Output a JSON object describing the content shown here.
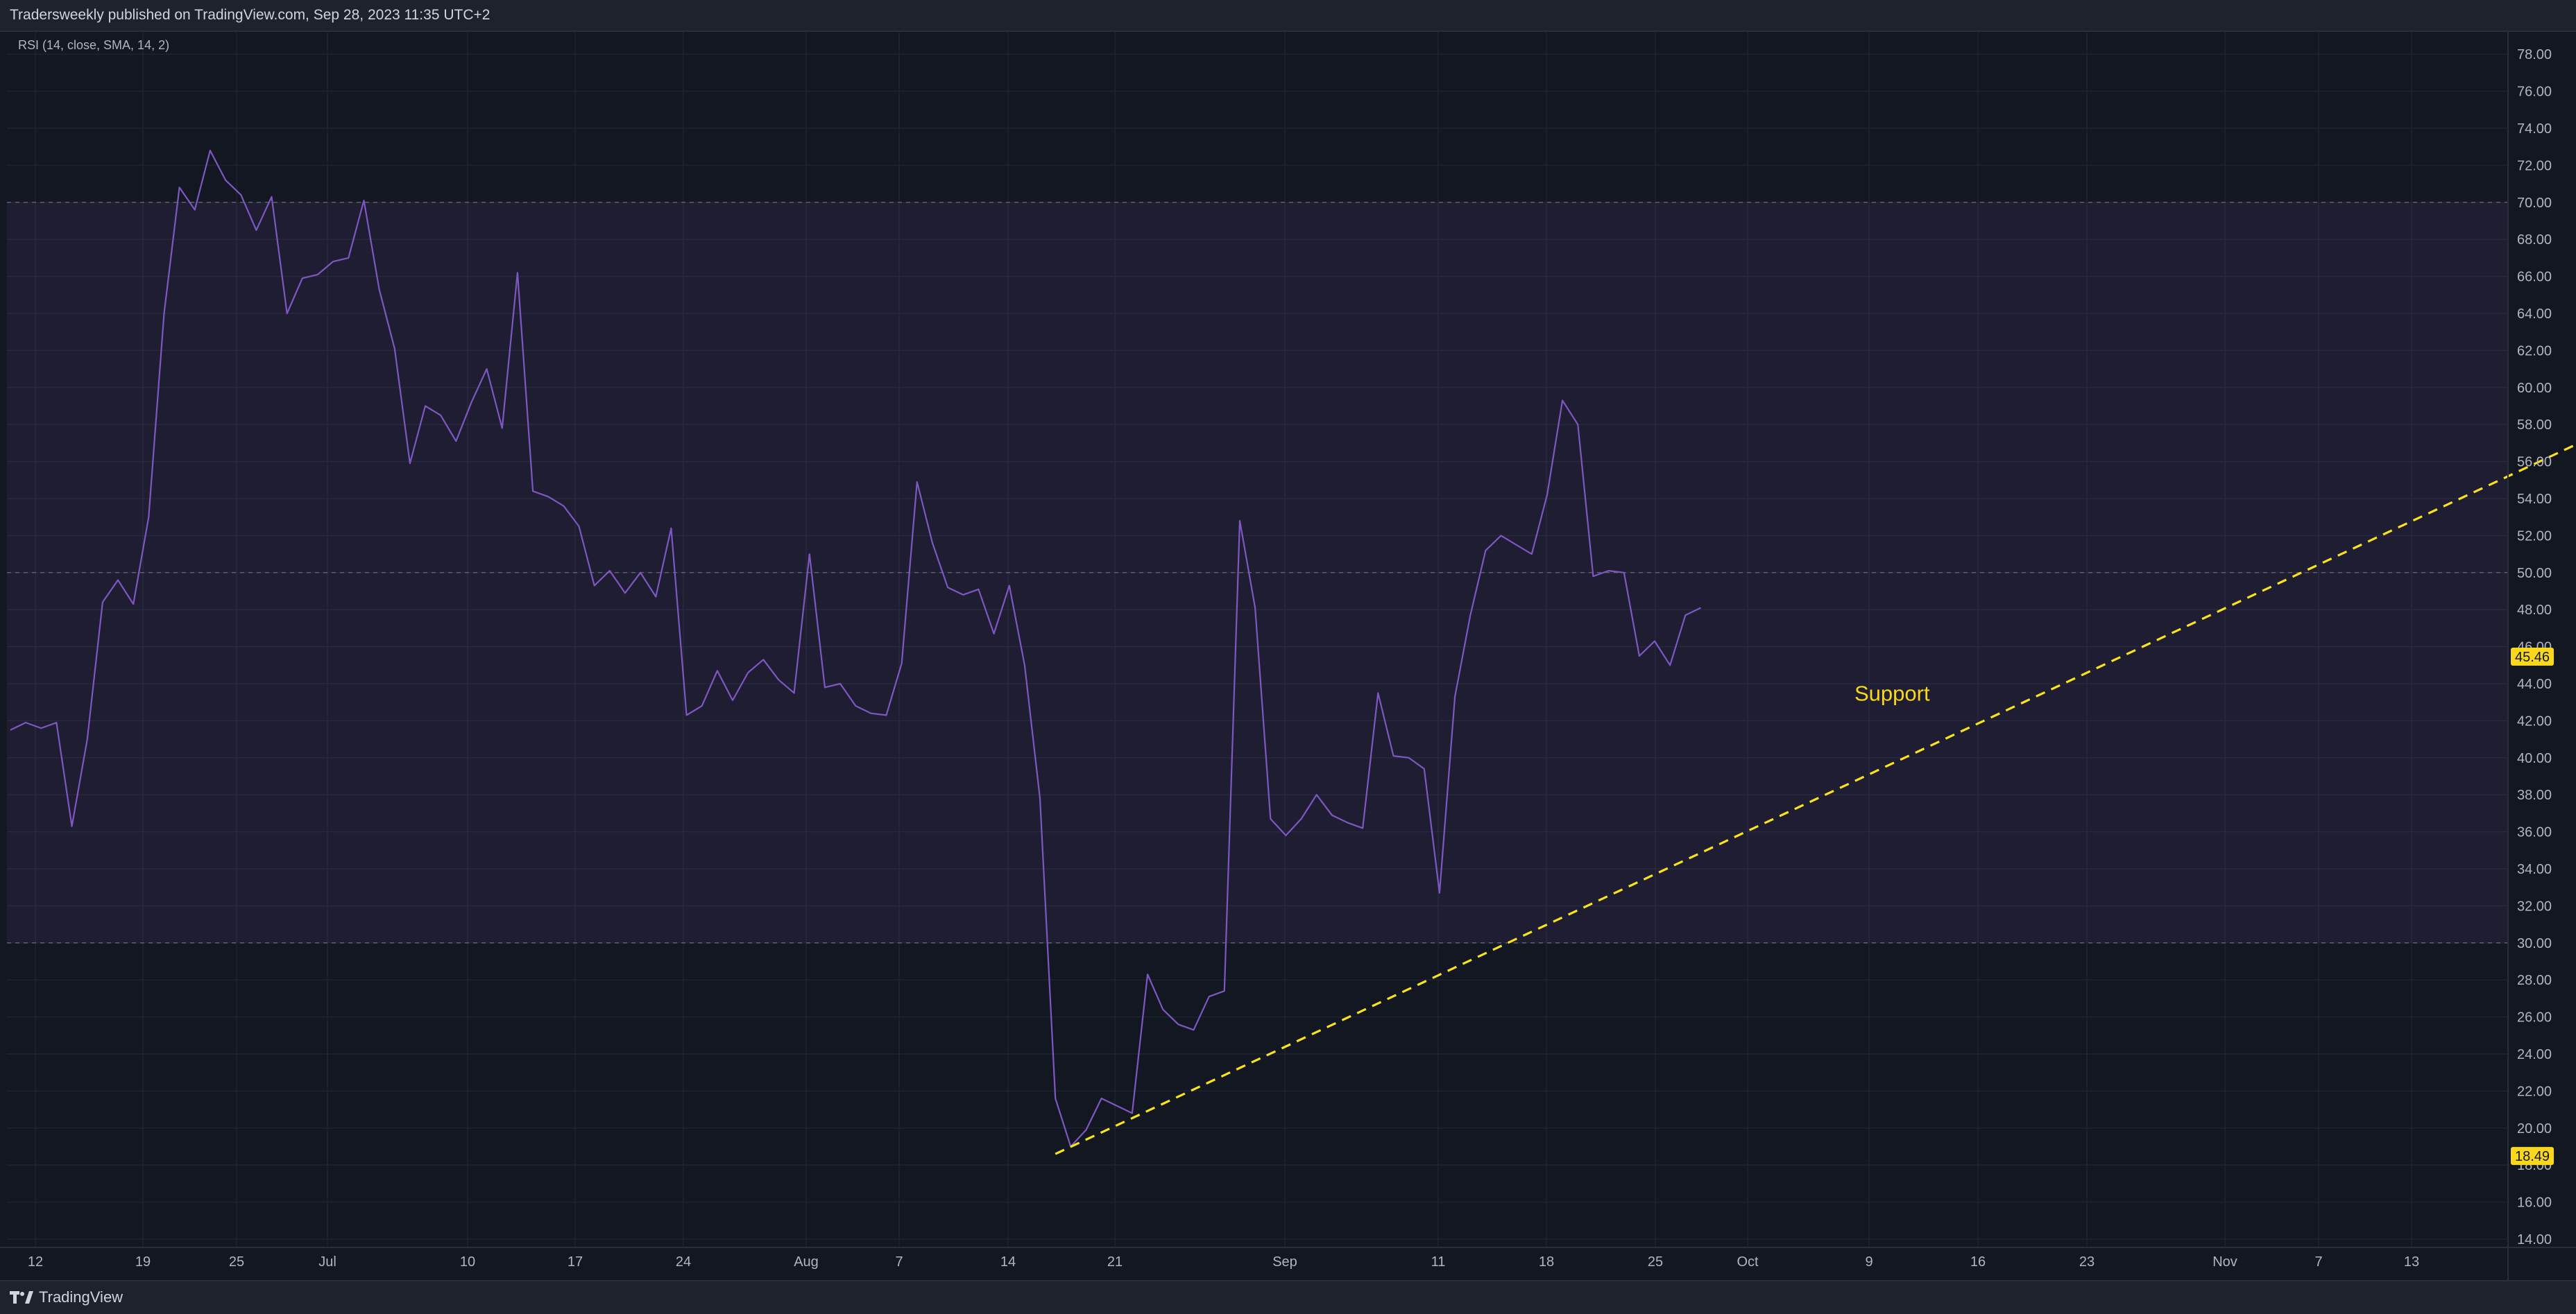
{
  "header": {
    "publisher_text": "Tradersweekly published on TradingView.com, Sep 28, 2023 11:35 UTC+2"
  },
  "footer": {
    "brand_icon": "tradingview-logo-icon",
    "brand_label": "TradingView"
  },
  "colors": {
    "background": "#131722",
    "band_fill": "#7e57c2",
    "rsi_line": "#7e57c2",
    "trendline": "#f9e31c",
    "label_yellow": "#f9d71c",
    "axis_text": "#b2b5be",
    "grid": "#1f2330"
  },
  "chart_data": {
    "type": "line",
    "indicator_label": "RSI (14, close, SMA, 14, 2)",
    "xlabel": "",
    "ylabel": "",
    "ylim": [
      13,
      79
    ],
    "grid": true,
    "x_axis_ticks": [
      "12",
      "19",
      "25",
      "Jul",
      "10",
      "17",
      "24",
      "Aug",
      "7",
      "14",
      "21",
      "Sep",
      "11",
      "18",
      "25",
      "Oct",
      "9",
      "16",
      "23",
      "Nov",
      "7",
      "13"
    ],
    "y_axis_ticks": [
      "14.00",
      "16.00",
      "18.00",
      "20.00",
      "22.00",
      "24.00",
      "26.00",
      "28.00",
      "30.00",
      "32.00",
      "34.00",
      "36.00",
      "38.00",
      "40.00",
      "42.00",
      "44.00",
      "46.00",
      "48.00",
      "50.00",
      "52.00",
      "54.00",
      "56.00",
      "58.00",
      "60.00",
      "62.00",
      "64.00",
      "66.00",
      "68.00",
      "70.00",
      "72.00",
      "74.00",
      "76.00",
      "78.00"
    ],
    "band": {
      "upper": 70,
      "middle": 50,
      "lower": 30
    },
    "series": [
      {
        "values": [
          41.5,
          41.9,
          41.6,
          41.9,
          36.3,
          41.0,
          48.4,
          49.6,
          48.3,
          53.0,
          64.0,
          70.8,
          69.6,
          72.8,
          71.2,
          70.4,
          68.5,
          70.3,
          64.0,
          65.9,
          66.1,
          66.8,
          67.0,
          70.1,
          65.3,
          62.1,
          55.9,
          59.0,
          58.5,
          57.1,
          59.2,
          61.0,
          57.8,
          66.2,
          54.4,
          54.1,
          53.6,
          52.5,
          49.3,
          50.1,
          48.9,
          50.0,
          48.7,
          52.4,
          42.3,
          42.8,
          44.7,
          43.1,
          44.6,
          45.3,
          44.2,
          43.5,
          51.0,
          43.8,
          44.0,
          42.8,
          42.4,
          42.3,
          45.1,
          54.9,
          51.6,
          49.2,
          48.8,
          49.1,
          46.7,
          49.3,
          45.0,
          37.8,
          21.6,
          19.0,
          19.9,
          21.6,
          21.2,
          20.8,
          28.3,
          26.4,
          25.6,
          25.3,
          27.1,
          27.4,
          52.8,
          48.1,
          36.7,
          35.8,
          36.7,
          38.0,
          36.9,
          36.5,
          36.2,
          43.5,
          40.1,
          40.0,
          39.4,
          32.7,
          43.3,
          47.7,
          51.2,
          52.0,
          51.5,
          51.0,
          54.2,
          59.3,
          58.0,
          49.8,
          50.1,
          50.0,
          45.5,
          46.3,
          45.0,
          47.7,
          48.1
        ]
      }
    ],
    "trendline": {
      "style": "dashed",
      "from": {
        "x_index": 68,
        "y": 18.6
      },
      "to": {
        "x_index": 209,
        "y": 73.2
      }
    },
    "annotations": [
      {
        "text": "Support",
        "x_index": 120,
        "y": 43.5
      }
    ],
    "price_labels": [
      {
        "text": "45.46",
        "value": 45.46
      },
      {
        "text": "18.49",
        "value": 18.49
      }
    ]
  }
}
